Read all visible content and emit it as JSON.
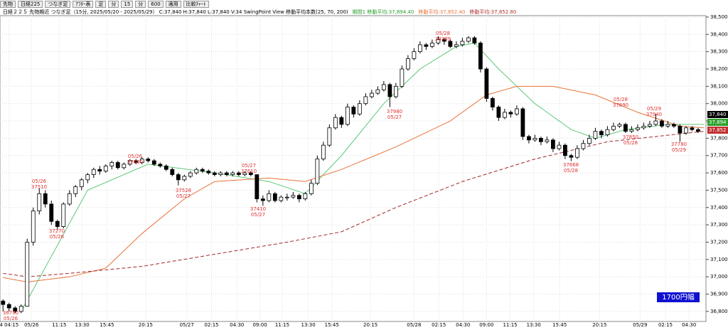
{
  "toolbar": {
    "items": [
      "先物",
      "日経225",
      "つなぎ足",
      "ｱﾌﾀｰ表",
      "足",
      "分",
      "15",
      "分",
      "600",
      "適用",
      "比較ﾁｬｰﾄ"
    ]
  },
  "chart_data": {
    "type": "candlestick",
    "header": [
      {
        "text": "日経２２５ 先物期近 つなぎ足（15分, 2025/05/20 - 2025/05/29） C:37,840 H:37,840 L:37,840 V:34   SwingPoint View   移動平均本数(25, 70, 200)",
        "color": "#000000"
      },
      {
        "text": "期間1 移動平均:37,894.40",
        "color": "#2ca02c"
      },
      {
        "text": "移動平均:37,852.40",
        "color": "#e8743b"
      },
      {
        "text": "移動平均:37,852.80",
        "color": "#b03030"
      }
    ],
    "xlim": [
      -0.5,
      116.3
    ],
    "xticks": [
      {
        "value": 1,
        "label": "4 04:15"
      },
      {
        "value": 4.7,
        "label": "05/26"
      },
      {
        "value": 9.3,
        "label": "11:15"
      },
      {
        "value": 13.1,
        "label": "13:30"
      },
      {
        "value": 17.2,
        "label": "15:45"
      },
      {
        "value": 23.6,
        "label": "20:15"
      },
      {
        "value": 30.4,
        "label": "05/27"
      },
      {
        "value": 34.5,
        "label": "02:15"
      },
      {
        "value": 38.7,
        "label": "04:30"
      },
      {
        "value": 42.5,
        "label": "09:00"
      },
      {
        "value": 46.2,
        "label": "11:15"
      },
      {
        "value": 50.5,
        "label": "13:30"
      },
      {
        "value": 54.4,
        "label": "15:45"
      },
      {
        "value": 60.8,
        "label": "20:15"
      },
      {
        "value": 68,
        "label": "05/28"
      },
      {
        "value": 72.1,
        "label": "02:15"
      },
      {
        "value": 76.1,
        "label": "04:30"
      },
      {
        "value": 80,
        "label": "09:00"
      },
      {
        "value": 83.9,
        "label": "11:15"
      },
      {
        "value": 87.8,
        "label": "13:30"
      },
      {
        "value": 92.1,
        "label": "15:45"
      },
      {
        "value": 98.7,
        "label": "20:15"
      },
      {
        "value": 105.4,
        "label": "05/29"
      },
      {
        "value": 109.6,
        "label": "02:15"
      },
      {
        "value": 113.5,
        "label": "04:30"
      }
    ],
    "ylim": [
      36742,
      38508
    ],
    "yticks": [
      {
        "value": 36800,
        "label": "36,800"
      },
      {
        "value": 36900,
        "label": "36,900"
      },
      {
        "value": 37000,
        "label": "37,000"
      },
      {
        "value": 37100,
        "label": "37,100"
      },
      {
        "value": 37200,
        "label": "37,200"
      },
      {
        "value": 37300,
        "label": "37,300"
      },
      {
        "value": 37400,
        "label": "37,400"
      },
      {
        "value": 37500,
        "label": "37,500"
      },
      {
        "value": 37600,
        "label": "37,600"
      },
      {
        "value": 37700,
        "label": "37,700"
      },
      {
        "value": 37800,
        "label": "37,800"
      },
      {
        "value": 37900,
        "label": "37,900"
      },
      {
        "value": 38000,
        "label": "38,000"
      },
      {
        "value": 38100,
        "label": "38,100"
      },
      {
        "value": 38200,
        "label": "38,200"
      },
      {
        "value": 38300,
        "label": "38,300"
      },
      {
        "value": 38400,
        "label": "38,400"
      },
      {
        "value": 38500,
        "label": "38,500"
      }
    ],
    "grid": true,
    "up_color": "#ffffff",
    "down_color": "#000000",
    "ohlc": [
      [
        36860,
        36870,
        36800,
        36840
      ],
      [
        36840,
        36850,
        36800,
        36820
      ],
      [
        36820,
        36830,
        36790,
        36800
      ],
      [
        36800,
        36840,
        36790,
        36830
      ],
      [
        36830,
        37220,
        36830,
        37200
      ],
      [
        37200,
        37400,
        37180,
        37380
      ],
      [
        37380,
        37510,
        37360,
        37480
      ],
      [
        37480,
        37500,
        37400,
        37420
      ],
      [
        37420,
        37440,
        37300,
        37320
      ],
      [
        37320,
        37330,
        37270,
        37290
      ],
      [
        37290,
        37430,
        37280,
        37420
      ],
      [
        37420,
        37500,
        37410,
        37480
      ],
      [
        37480,
        37530,
        37460,
        37520
      ],
      [
        37520,
        37570,
        37500,
        37560
      ],
      [
        37560,
        37600,
        37540,
        37590
      ],
      [
        37590,
        37630,
        37570,
        37620
      ],
      [
        37620,
        37640,
        37590,
        37610
      ],
      [
        37610,
        37650,
        37600,
        37640
      ],
      [
        37640,
        37670,
        37620,
        37660
      ],
      [
        37660,
        37670,
        37620,
        37630
      ],
      [
        37630,
        37660,
        37620,
        37650
      ],
      [
        37650,
        37680,
        37640,
        37670
      ],
      [
        37670,
        37680,
        37650,
        37660
      ],
      [
        37660,
        37690,
        37650,
        37680
      ],
      [
        37680,
        37690,
        37660,
        37670
      ],
      [
        37670,
        37680,
        37640,
        37650
      ],
      [
        37650,
        37660,
        37630,
        37640
      ],
      [
        37640,
        37650,
        37610,
        37620
      ],
      [
        37620,
        37630,
        37580,
        37590
      ],
      [
        37590,
        37600,
        37528,
        37560
      ],
      [
        37560,
        37590,
        37550,
        37580
      ],
      [
        37580,
        37610,
        37570,
        37600
      ],
      [
        37600,
        37630,
        37590,
        37620
      ],
      [
        37620,
        37630,
        37600,
        37610
      ],
      [
        37610,
        37620,
        37590,
        37600
      ],
      [
        37600,
        37610,
        37580,
        37590
      ],
      [
        37590,
        37610,
        37580,
        37600
      ],
      [
        37600,
        37610,
        37580,
        37590
      ],
      [
        37590,
        37610,
        37580,
        37600
      ],
      [
        37600,
        37610,
        37580,
        37590
      ],
      [
        37590,
        37610,
        37580,
        37600
      ],
      [
        37600,
        37610,
        37580,
        37590
      ],
      [
        37590,
        37590,
        37430,
        37450
      ],
      [
        37450,
        37470,
        37410,
        37440
      ],
      [
        37440,
        37500,
        37430,
        37480
      ],
      [
        37480,
        37490,
        37430,
        37440
      ],
      [
        37440,
        37470,
        37430,
        37460
      ],
      [
        37460,
        37480,
        37440,
        37460
      ],
      [
        37460,
        37490,
        37450,
        37470
      ],
      [
        37470,
        37480,
        37430,
        37450
      ],
      [
        37450,
        37490,
        37440,
        37480
      ],
      [
        37480,
        37560,
        37470,
        37540
      ],
      [
        37540,
        37700,
        37530,
        37680
      ],
      [
        37680,
        37780,
        37670,
        37760
      ],
      [
        37760,
        37880,
        37750,
        37860
      ],
      [
        37860,
        37940,
        37850,
        37920
      ],
      [
        37920,
        37930,
        37860,
        37880
      ],
      [
        37880,
        38000,
        37870,
        37980
      ],
      [
        37980,
        37990,
        37920,
        37940
      ],
      [
        37940,
        38020,
        37930,
        38000
      ],
      [
        38000,
        38060,
        37990,
        38040
      ],
      [
        38040,
        38080,
        38030,
        38060
      ],
      [
        38060,
        38100,
        38050,
        38080
      ],
      [
        38080,
        38130,
        38070,
        38110
      ],
      [
        38110,
        38120,
        37980,
        38040
      ],
      [
        38040,
        38120,
        38030,
        38100
      ],
      [
        38100,
        38220,
        38090,
        38200
      ],
      [
        38200,
        38280,
        38190,
        38260
      ],
      [
        38260,
        38320,
        38250,
        38300
      ],
      [
        38300,
        38360,
        38290,
        38340
      ],
      [
        38340,
        38350,
        38310,
        38330
      ],
      [
        38330,
        38370,
        38320,
        38350
      ],
      [
        38350,
        38389,
        38340,
        38370
      ],
      [
        38370,
        38380,
        38340,
        38360
      ],
      [
        38360,
        38370,
        38320,
        38330
      ],
      [
        38330,
        38360,
        38320,
        38340
      ],
      [
        38340,
        38380,
        38330,
        38360
      ],
      [
        38360,
        38390,
        38350,
        38380
      ],
      [
        38380,
        38390,
        38340,
        38350
      ],
      [
        38350,
        38360,
        38180,
        38200
      ],
      [
        38200,
        38210,
        38010,
        38030
      ],
      [
        38030,
        38040,
        37960,
        37980
      ],
      [
        37980,
        37990,
        37900,
        37920
      ],
      [
        37920,
        37970,
        37910,
        37950
      ],
      [
        37950,
        37960,
        37920,
        37940
      ],
      [
        37940,
        37990,
        37930,
        37970
      ],
      [
        37970,
        37980,
        37790,
        37810
      ],
      [
        37810,
        37820,
        37770,
        37790
      ],
      [
        37790,
        37820,
        37780,
        37800
      ],
      [
        37800,
        37810,
        37760,
        37780
      ],
      [
        37780,
        37810,
        37770,
        37790
      ],
      [
        37790,
        37800,
        37720,
        37740
      ],
      [
        37740,
        37780,
        37730,
        37760
      ],
      [
        37760,
        37770,
        37680,
        37700
      ],
      [
        37700,
        37710,
        37668,
        37690
      ],
      [
        37690,
        37760,
        37680,
        37740
      ],
      [
        37740,
        37790,
        37730,
        37770
      ],
      [
        37770,
        37820,
        37760,
        37800
      ],
      [
        37800,
        37860,
        37790,
        37840
      ],
      [
        37840,
        37850,
        37800,
        37820
      ],
      [
        37820,
        37870,
        37810,
        37850
      ],
      [
        37850,
        37890,
        37840,
        37870
      ],
      [
        37870,
        37890,
        37860,
        37880
      ],
      [
        37880,
        37890,
        37830,
        37840
      ],
      [
        37840,
        37870,
        37830,
        37850
      ],
      [
        37850,
        37880,
        37840,
        37860
      ],
      [
        37860,
        37890,
        37850,
        37870
      ],
      [
        37870,
        37900,
        37860,
        37880
      ],
      [
        37880,
        37940,
        37870,
        37900
      ],
      [
        37900,
        37910,
        37860,
        37870
      ],
      [
        37870,
        37900,
        37860,
        37880
      ],
      [
        37880,
        37890,
        37860,
        37870
      ],
      [
        37870,
        37880,
        37780,
        37830
      ],
      [
        37830,
        37870,
        37820,
        37860
      ],
      [
        37860,
        37870,
        37840,
        37850
      ],
      [
        37850,
        37860,
        37830,
        37840
      ]
    ],
    "moving_averages": [
      {
        "color": "#5cc878",
        "dash": false,
        "x": [
          3,
          14,
          24,
          35,
          44,
          50,
          56,
          63,
          69,
          75,
          78,
          82,
          88,
          94,
          98,
          103,
          110,
          116
        ],
        "values": [
          36800,
          37500,
          37650,
          37600,
          37550,
          37480,
          37700,
          38000,
          38200,
          38330,
          38350,
          38200,
          38000,
          37850,
          37800,
          37850,
          37880,
          37880
        ]
      },
      {
        "color": "#e8743b",
        "dash": false,
        "x": [
          0,
          4,
          11,
          17,
          23,
          30,
          35,
          44,
          50,
          56,
          65,
          74,
          80,
          85,
          91,
          98,
          105,
          112,
          116
        ],
        "values": [
          36995,
          36970,
          37000,
          37050,
          37250,
          37450,
          37550,
          37570,
          37550,
          37620,
          37750,
          37900,
          38050,
          38100,
          38100,
          38050,
          37950,
          37870,
          37860
        ]
      },
      {
        "color": "#a02828",
        "dash": true,
        "x": [
          0,
          4,
          11,
          23,
          35,
          47,
          56,
          65,
          76,
          88,
          100,
          116
        ],
        "values": [
          37020,
          37000,
          37020,
          37060,
          37130,
          37200,
          37260,
          37400,
          37550,
          37680,
          37780,
          37840
        ]
      }
    ],
    "annotations": [
      [
        "05/26",
        "37510"
      ],
      [
        "37270",
        "05/26"
      ],
      [
        "05/26",
        "37680"
      ],
      [
        "37528",
        "05/27"
      ],
      [
        "05/27",
        "37610"
      ],
      [
        "37410",
        "05/27"
      ],
      [
        "37980",
        "05/27"
      ],
      [
        "05/28",
        "38389"
      ],
      [
        "37668",
        "05/28"
      ],
      [
        "05/28",
        "37890"
      ],
      [
        "37850",
        "05/28"
      ],
      [
        "05/29",
        "37940"
      ],
      [
        "37780",
        "05/29"
      ],
      [
        "36790",
        "05/26"
      ]
    ],
    "price_tags": [
      {
        "label": "37,840",
        "color": "#000000"
      },
      {
        "label": "37,894",
        "color": "#2ca02c"
      },
      {
        "label": "37,852",
        "color": "#c03030"
      }
    ],
    "range_box": "1700円幅"
  }
}
